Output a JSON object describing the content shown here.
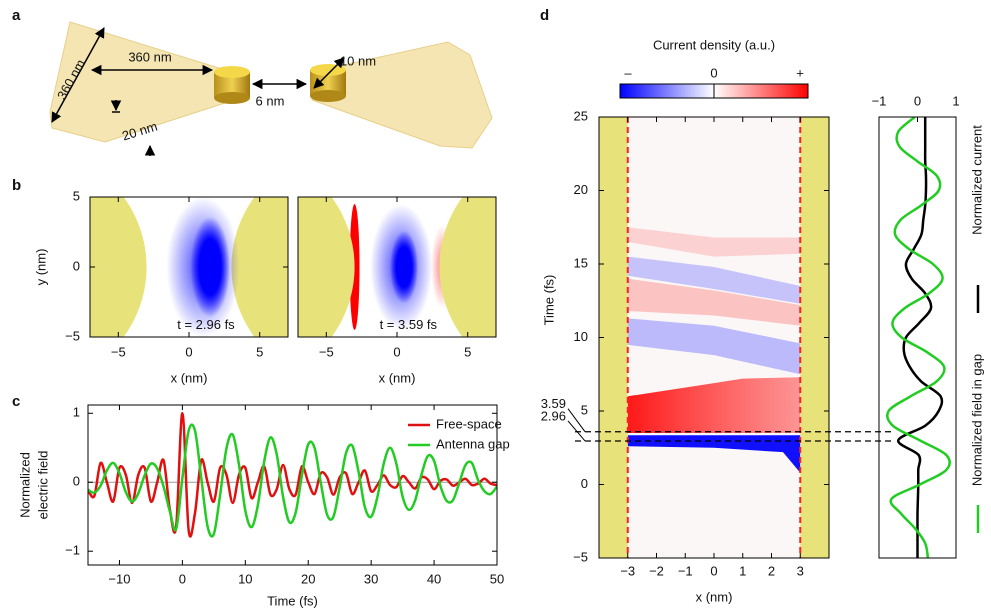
{
  "panel_labels": [
    "a",
    "b",
    "c",
    "d"
  ],
  "diagram": {
    "labels": [
      "360 nm",
      "360 nm",
      "20 nm",
      "6 nm",
      "10 nm"
    ]
  },
  "chart_data": [
    {
      "type": "heatmap",
      "xlabel": "x (nm)",
      "ylabel": "y (nm)",
      "xlim": [
        -7,
        7
      ],
      "ylim": [
        -5,
        5
      ],
      "xticks": [
        {
          "value": -5,
          "label": "−5"
        },
        0,
        5
      ],
      "yticks": [
        {
          "value": -5,
          "label": "−5"
        },
        0,
        5
      ],
      "annotation": "t = 2.96 fs"
    },
    {
      "type": "heatmap",
      "xlabel": "x (nm)",
      "xlim": [
        -7,
        7
      ],
      "ylim": [
        -5,
        5
      ],
      "xticks": [
        {
          "value": -5,
          "label": "−5"
        },
        0,
        5
      ],
      "annotation": "t = 3.59 fs"
    },
    {
      "type": "line",
      "xlabel": "Time (fs)",
      "ylabel": [
        "Normalized",
        "electric field"
      ],
      "x": [
        -15,
        -14,
        -13,
        -12,
        -11,
        -10,
        -9,
        -8,
        -7,
        -6,
        -5,
        -4,
        -3,
        -2,
        -1,
        0,
        1,
        2,
        3,
        4,
        5,
        6,
        7,
        8,
        9,
        10,
        11,
        12,
        13,
        14,
        15,
        16,
        17,
        18,
        19,
        20,
        21,
        22,
        23,
        24,
        25,
        26,
        27,
        28,
        29,
        30,
        31,
        32,
        33,
        34,
        35,
        36,
        37,
        38,
        39,
        40,
        41,
        42,
        43,
        44,
        45,
        46,
        47,
        48,
        49,
        50
      ],
      "series": [
        {
          "name": "Free-space",
          "color": "#e01010",
          "values": [
            -0.11,
            -0.2,
            0.28,
            0,
            -0.28,
            0.21,
            0.11,
            -0.3,
            0.11,
            0.21,
            -0.28,
            0,
            0.32,
            -0.39,
            -0.65,
            1,
            -0.7,
            -0.45,
            0.32,
            0,
            -0.28,
            0.21,
            0.11,
            -0.3,
            0.11,
            0.21,
            -0.23,
            0,
            0.23,
            -0.18,
            -0.1,
            0.25,
            -0.1,
            -0.18,
            0.23,
            0,
            -0.17,
            0.13,
            0.07,
            -0.18,
            0.07,
            0.13,
            -0.17,
            0,
            0.17,
            -0.13,
            -0.04,
            0.1,
            -0.04,
            -0.07,
            0.09,
            0,
            -0.09,
            0.07,
            0.04,
            -0.1,
            0.02,
            0.04,
            -0.05,
            0,
            0.05,
            -0.04,
            -0.02,
            0.05,
            -0.02,
            -0.04
          ]
        },
        {
          "name": "Antenna gap",
          "color": "#22cc22",
          "values": [
            -0.11,
            -0.15,
            -0.05,
            0.17,
            0.28,
            0.13,
            -0.14,
            -0.28,
            -0.16,
            0.1,
            0.27,
            0.2,
            -0.06,
            -0.42,
            -0.68,
            0.06,
            0.75,
            0.75,
            0.06,
            -0.64,
            -0.75,
            -0.18,
            0.49,
            0.69,
            0.25,
            -0.41,
            -0.65,
            -0.33,
            0.3,
            0.65,
            0.4,
            -0.21,
            -0.58,
            -0.44,
            0.1,
            0.55,
            0.5,
            -0.01,
            -0.47,
            -0.5,
            -0.07,
            0.42,
            0.53,
            0.15,
            -0.36,
            -0.5,
            -0.21,
            0.27,
            0.5,
            0.27,
            -0.21,
            -0.4,
            -0.26,
            0.11,
            0.38,
            0.31,
            -0.05,
            -0.27,
            -0.26,
            -0.01,
            0.25,
            0.28,
            0.03,
            -0.13,
            -0.17,
            -0.06
          ]
        }
      ],
      "xlim": [
        -15,
        50
      ],
      "ylim": [
        -1.2,
        1.12
      ],
      "xticks": [
        {
          "value": -10,
          "label": "−10"
        },
        0,
        10,
        20,
        30,
        40,
        50
      ],
      "yticks": [
        {
          "value": -1,
          "label": "−1"
        },
        0,
        1
      ],
      "legend": "upper right"
    },
    {
      "type": "heatmap",
      "title": "Current density (a.u.)",
      "colorbar_labels": [
        "–",
        "0",
        "+"
      ],
      "colors": [
        "#0000ff",
        "#ffffff",
        "#ff0000"
      ],
      "xlabel": "x (nm)",
      "ylabel": "Time (fs)",
      "xlim": [
        -4,
        4
      ],
      "ylim": [
        -5,
        25
      ],
      "xticks": [
        {
          "value": -3,
          "label": "−3"
        },
        {
          "value": -2,
          "label": "−2"
        },
        {
          "value": -1,
          "label": "−1"
        },
        0,
        1,
        2,
        3
      ],
      "yticks": [
        {
          "value": -5,
          "label": "−5"
        },
        0,
        5,
        10,
        15,
        20,
        25
      ],
      "markers": [
        3.59,
        2.96
      ]
    },
    {
      "type": "line",
      "orientation": "vertical",
      "y": [
        -5,
        -4,
        -3,
        -2,
        -1,
        0,
        1,
        2,
        3,
        4,
        5,
        6,
        7,
        8,
        9,
        10,
        11,
        12,
        13,
        14,
        15,
        16,
        17,
        18,
        19,
        20,
        21,
        22,
        23,
        24,
        25
      ],
      "series": [
        {
          "name": "Normalized current",
          "color": "#000000",
          "values": [
            0,
            0,
            0,
            0,
            0.01,
            0.02,
            0.02,
            0.03,
            -0.5,
            0.2,
            0.55,
            0.6,
            0.1,
            -0.2,
            -0.35,
            -0.3,
            0.05,
            0.35,
            0.2,
            -0.15,
            -0.3,
            -0.1,
            0.1,
            0.15,
            0.2,
            0.22,
            0.22,
            0.2,
            0.2,
            0.2,
            0.2
          ]
        },
        {
          "name": "Normalized field in gap",
          "color": "#22cc22",
          "values": [
            0.27,
            0.2,
            -0.06,
            -0.42,
            -0.68,
            0.06,
            0.75,
            0.75,
            0.06,
            -0.64,
            -0.75,
            -0.18,
            0.49,
            0.69,
            0.25,
            -0.41,
            -0.65,
            -0.33,
            0.3,
            0.65,
            0.4,
            -0.21,
            -0.58,
            -0.44,
            0.1,
            0.55,
            0.5,
            -0.01,
            -0.47,
            -0.5,
            -0.07
          ]
        }
      ],
      "xlim": [
        -1,
        1
      ],
      "ylim": [
        -5,
        25
      ],
      "xticks": [
        {
          "value": -1,
          "label": "−1"
        },
        0,
        1
      ]
    }
  ]
}
